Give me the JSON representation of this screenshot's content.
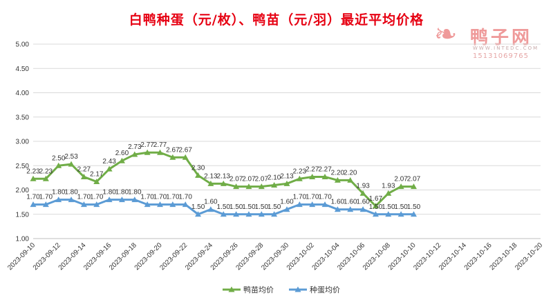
{
  "title": "白鸭种蛋（元/枚）、鸭苗（元/羽）最近平均价格",
  "title_color": "#e60012",
  "watermark": {
    "brand": "鸭子网",
    "url": "WWW.INTEDC.COM",
    "phone": "15131069765",
    "icon": "duck-logo-icon"
  },
  "chart_data": {
    "type": "line",
    "title": "白鸭种蛋（元/枚）、鸭苗（元/羽）最近平均价格",
    "xlabel": "",
    "ylabel": "",
    "ylim": [
      1.0,
      5.0
    ],
    "yticks": [
      "1.00",
      "1.50",
      "2.00",
      "2.50",
      "3.00",
      "3.50",
      "4.00",
      "4.50",
      "5.00"
    ],
    "xrange": [
      "2023-09-10",
      "2023-10-20"
    ],
    "xticks": [
      "2023-09-10",
      "2023-09-12",
      "2023-09-14",
      "2023-09-16",
      "2023-09-18",
      "2023-09-20",
      "2023-09-22",
      "2023-09-24",
      "2023-09-26",
      "2023-09-28",
      "2023-09-30",
      "2023-10-02",
      "2023-10-04",
      "2023-10-06",
      "2023-10-08",
      "2023-10-10",
      "2023-10-12",
      "2023-10-14",
      "2023-10-16",
      "2023-10-18",
      "2023-10-20"
    ],
    "grid": true,
    "legend_position": "bottom",
    "x": [
      "2023-09-10",
      "2023-09-11",
      "2023-09-12",
      "2023-09-13",
      "2023-09-14",
      "2023-09-15",
      "2023-09-16",
      "2023-09-17",
      "2023-09-18",
      "2023-09-19",
      "2023-09-20",
      "2023-09-21",
      "2023-09-22",
      "2023-09-23",
      "2023-09-24",
      "2023-09-25",
      "2023-09-26",
      "2023-09-27",
      "2023-09-28",
      "2023-09-29",
      "2023-09-30",
      "2023-10-01",
      "2023-10-02",
      "2023-10-03",
      "2023-10-04",
      "2023-10-05",
      "2023-10-06",
      "2023-10-07",
      "2023-10-08",
      "2023-10-09",
      "2023-10-10"
    ],
    "series": [
      {
        "name": "鸭苗均价",
        "color": "#70ad47",
        "marker": "triangle",
        "values": [
          2.23,
          2.23,
          2.5,
          2.53,
          2.27,
          2.17,
          2.43,
          2.6,
          2.73,
          2.77,
          2.77,
          2.67,
          2.67,
          2.3,
          2.13,
          2.13,
          2.07,
          2.07,
          2.07,
          2.1,
          2.13,
          2.23,
          2.27,
          2.27,
          2.2,
          2.2,
          1.93,
          1.67,
          1.93,
          2.07,
          2.07
        ]
      },
      {
        "name": "种蛋均价",
        "color": "#5b9bd5",
        "marker": "triangle",
        "values": [
          1.7,
          1.7,
          1.8,
          1.8,
          1.7,
          1.7,
          1.8,
          1.8,
          1.8,
          1.7,
          1.7,
          1.7,
          1.7,
          1.5,
          1.6,
          1.5,
          1.5,
          1.5,
          1.5,
          1.5,
          1.6,
          1.7,
          1.7,
          1.7,
          1.6,
          1.6,
          1.6,
          1.5,
          1.5,
          1.5,
          1.5
        ]
      }
    ]
  }
}
